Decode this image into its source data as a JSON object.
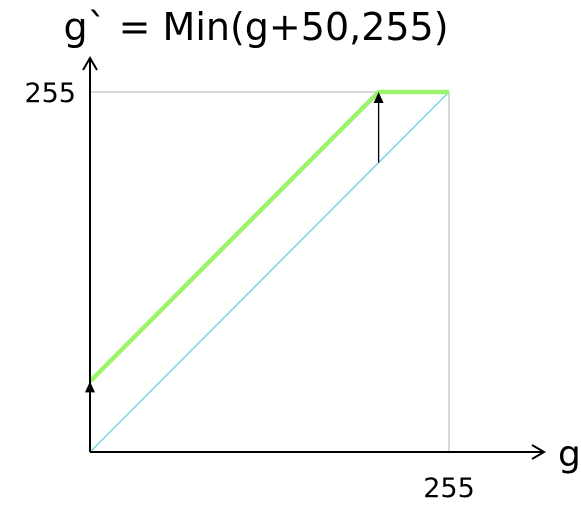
{
  "chart_data": {
    "type": "line",
    "title": "g` = Min(g+50,255)",
    "xlabel": "g",
    "ylabel": "",
    "xlim": [
      0,
      255
    ],
    "ylim": [
      0,
      255
    ],
    "x_tick_labels": [
      "255"
    ],
    "y_tick_labels": [
      "255"
    ],
    "grid": false,
    "legend": "none",
    "series": [
      {
        "x": [
          0,
          255
        ],
        "y": [
          0,
          255
        ],
        "color": "#7fd3e6"
      },
      {
        "x": [
          0,
          205,
          255
        ],
        "y": [
          50,
          255,
          255
        ],
        "color": "#9cf36c"
      }
    ],
    "annotations": [
      {
        "type": "arrow",
        "x": 0,
        "y_from": 0,
        "y_to": 50
      },
      {
        "type": "arrow",
        "x": 205,
        "y_from": 205,
        "y_to": 255
      }
    ]
  }
}
